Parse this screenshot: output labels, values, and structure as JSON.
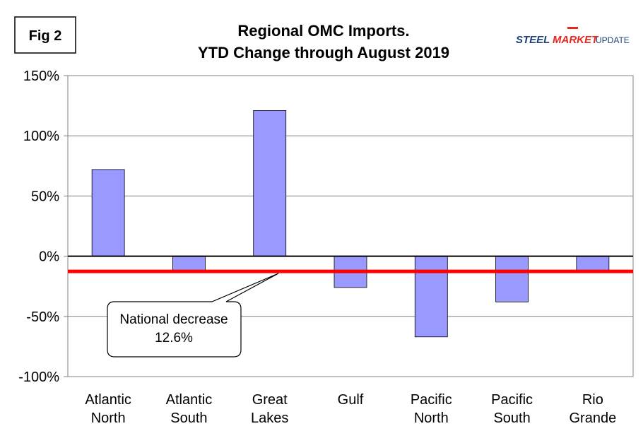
{
  "figure_label": "Fig 2",
  "logo": {
    "word1": "STEEL",
    "word2": "MARKET",
    "word3": "UPDATE",
    "color_dark": "#1f3f7a",
    "color_accent": "#e8261e"
  },
  "chart_data": {
    "type": "bar",
    "title_line1": "Regional OMC Imports.",
    "title_line2": "YTD Change through August 2019",
    "categories": [
      [
        "Atlantic",
        "North"
      ],
      [
        "Atlantic",
        "South"
      ],
      [
        "Great",
        "Lakes"
      ],
      [
        "Gulf"
      ],
      [
        "Pacific",
        "North"
      ],
      [
        "Pacific",
        "South"
      ],
      [
        "Rio",
        "Grande"
      ]
    ],
    "values": [
      72,
      -12,
      121,
      -26,
      -67,
      -38,
      -12
    ],
    "ylim": [
      -100,
      150
    ],
    "yticks": [
      150,
      100,
      50,
      0,
      -50,
      -100
    ],
    "ytick_labels": [
      "150%",
      "100%",
      "50%",
      "0%",
      "-50%",
      "-100%"
    ],
    "grid": true,
    "bar_color": "#9999ff",
    "reference_line": {
      "value": -12.6,
      "color": "#ff0000"
    },
    "annotation": {
      "line1": "National decrease",
      "line2": "12.6%"
    }
  }
}
